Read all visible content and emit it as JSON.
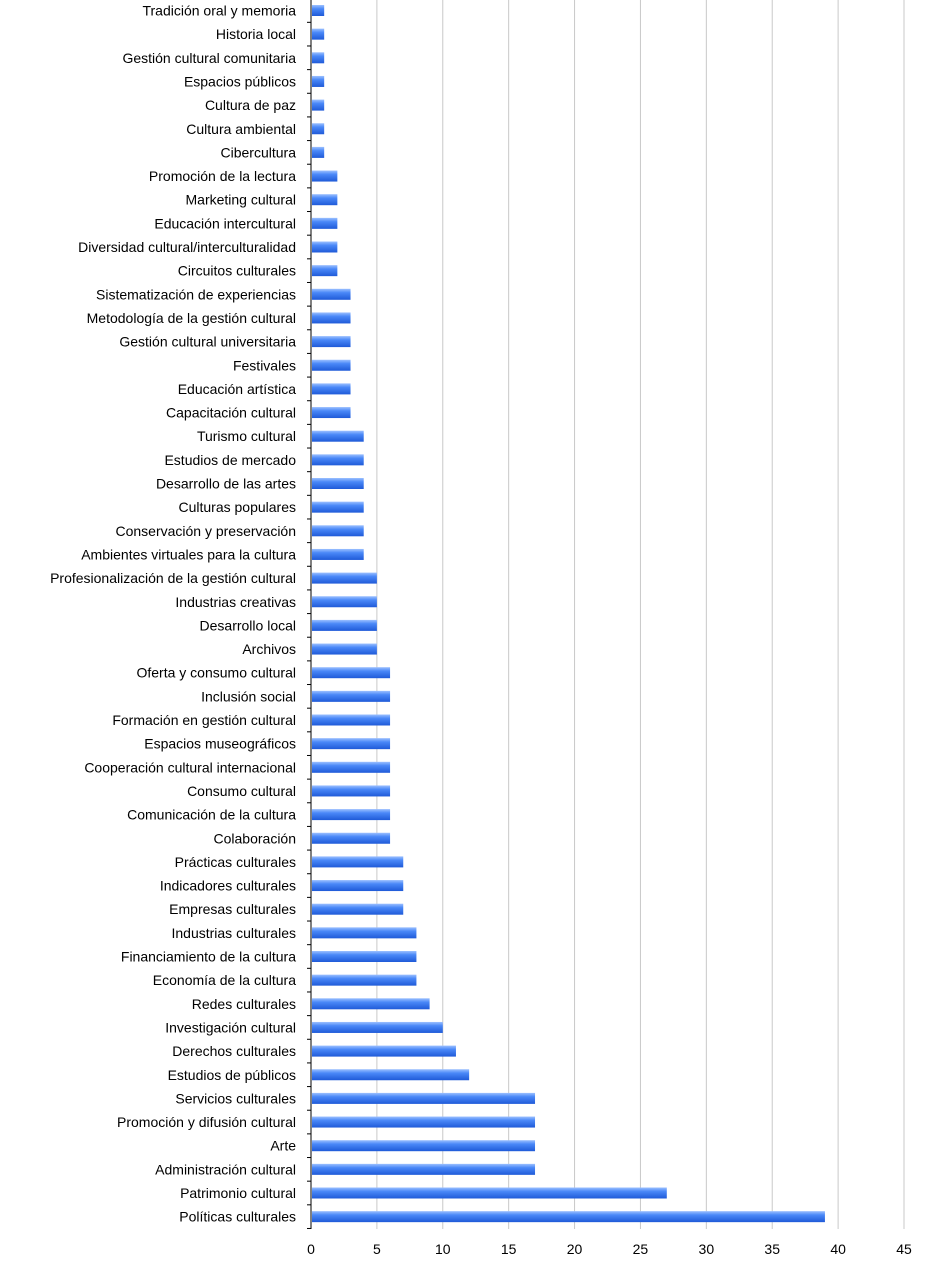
{
  "chart_data": {
    "type": "bar",
    "orientation": "horizontal",
    "categories": [
      "Tradición oral y memoria",
      "Historia local",
      "Gestión cultural comunitaria",
      "Espacios públicos",
      "Cultura de paz",
      "Cultura ambiental",
      "Cibercultura",
      "Promoción de la lectura",
      "Marketing cultural",
      "Educación intercultural",
      "Diversidad cultural/interculturalidad",
      "Circuitos culturales",
      "Sistematización de experiencias",
      "Metodología de la gestión cultural",
      "Gestión cultural universitaria",
      "Festivales",
      "Educación artística",
      "Capacitación cultural",
      "Turismo cultural",
      "Estudios de mercado",
      "Desarrollo de las artes",
      "Culturas populares",
      "Conservación y preservación",
      "Ambientes virtuales para  la cultura",
      "Profesionalización de la gestión cultural",
      "Industrias creativas",
      "Desarrollo local",
      "Archivos",
      "Oferta y consumo cultural",
      "Inclusión social",
      "Formación en gestión cultural",
      "Espacios museográficos",
      "Cooperación cultural internacional",
      "Consumo cultural",
      "Comunicación de la cultura",
      "Colaboración",
      "Prácticas culturales",
      "Indicadores culturales",
      "Empresas culturales",
      "Industrias culturales",
      "Financiamiento de la cultura",
      "Economía de la cultura",
      "Redes culturales",
      "Investigación cultural",
      "Derechos culturales",
      "Estudios de públicos",
      "Servicios culturales",
      "Promoción y difusión cultural",
      "Arte",
      "Administración cultural",
      "Patrimonio cultural",
      "Políticas culturales"
    ],
    "values": [
      1,
      1,
      1,
      1,
      1,
      1,
      1,
      2,
      2,
      2,
      2,
      2,
      3,
      3,
      3,
      3,
      3,
      3,
      4,
      4,
      4,
      4,
      4,
      4,
      5,
      5,
      5,
      5,
      6,
      6,
      6,
      6,
      6,
      6,
      6,
      6,
      7,
      7,
      7,
      8,
      8,
      8,
      9,
      10,
      11,
      12,
      17,
      17,
      17,
      17,
      27,
      39
    ],
    "xlim": [
      0,
      45
    ],
    "xticks": [
      "0",
      "5",
      "10",
      "15",
      "20",
      "25",
      "30",
      "35",
      "40",
      "45"
    ],
    "grid": "vertical",
    "legend": "none",
    "title": "",
    "xlabel": "",
    "ylabel": "",
    "colors": {
      "bar": "#3f7ef7",
      "bar_highlight": "#8fb8ff",
      "bar_shadow": "#1d56d6",
      "grid": "#c8c8c8",
      "axis": "#000000"
    }
  }
}
